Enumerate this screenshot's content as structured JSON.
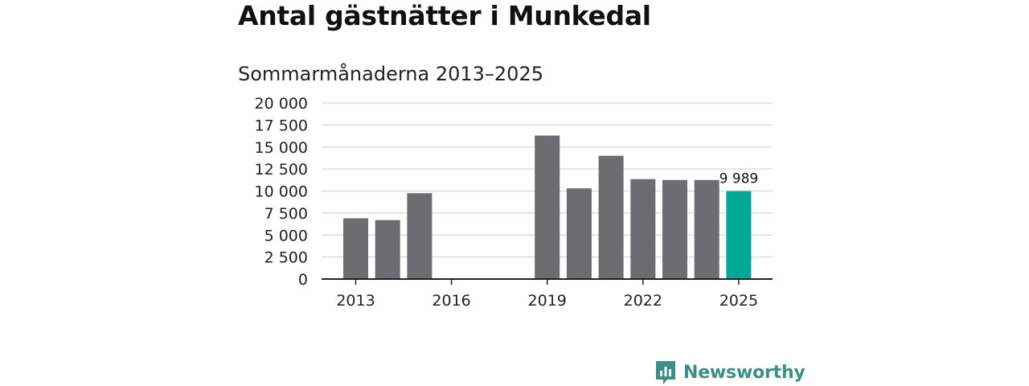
{
  "title": "Antal gästnätter i Munkedal",
  "subtitle": "Sommarmånaderna 2013–2025",
  "brand": {
    "name": "Newsworthy",
    "color": "#3b8f86"
  },
  "colors": {
    "bar": "#6d6c70",
    "highlight": "#00a896",
    "grid": "#dddddd",
    "axis": "#222222"
  },
  "chart_data": {
    "type": "bar",
    "x": [
      2013,
      2014,
      2015,
      2016,
      2017,
      2018,
      2019,
      2020,
      2021,
      2022,
      2023,
      2024,
      2025
    ],
    "values": [
      6900,
      6700,
      9750,
      null,
      null,
      null,
      16300,
      10300,
      14000,
      11350,
      11250,
      11250,
      9989
    ],
    "highlight_index": 12,
    "data_labels": [
      {
        "index": 12,
        "text": "9 989"
      }
    ],
    "ylim": [
      0,
      20000
    ],
    "yticks": [
      0,
      2500,
      5000,
      7500,
      10000,
      12500,
      15000,
      17500,
      20000
    ],
    "ytick_labels": [
      "0",
      "2 500",
      "5 000",
      "7 500",
      "10 000",
      "12 500",
      "15 000",
      "17 500",
      "20 000"
    ],
    "xticks": [
      2013,
      2016,
      2019,
      2022,
      2025
    ],
    "xtick_labels": [
      "2013",
      "2016",
      "2019",
      "2022",
      "2025"
    ],
    "xlabel": "",
    "ylabel": "",
    "grid": true,
    "legend": "none"
  }
}
